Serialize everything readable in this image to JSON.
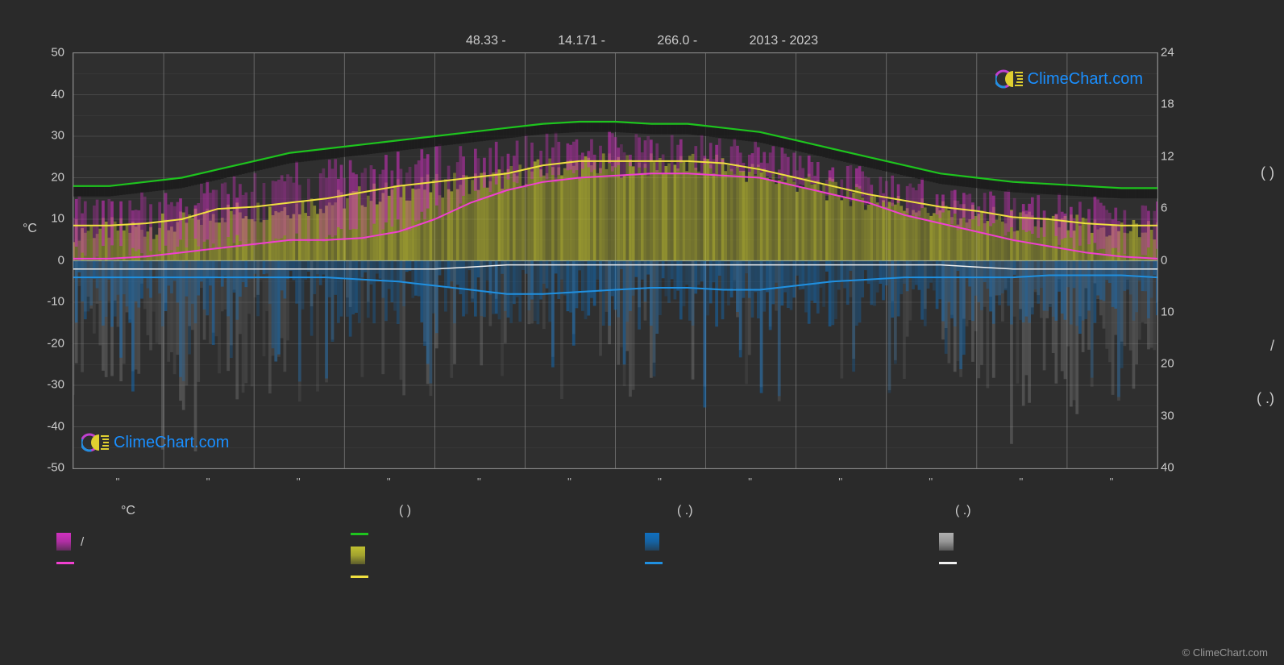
{
  "header": {
    "lat": "48.33 -",
    "lon": "14.171 -",
    "elev": "266.0 -",
    "years": "2013 - 2023"
  },
  "left_axis": {
    "label": "°C",
    "ticks": [
      50,
      40,
      30,
      20,
      10,
      0,
      -10,
      -20,
      -30,
      -40,
      -50
    ],
    "min": -50,
    "max": 50
  },
  "right_axis": {
    "label_top": "24",
    "ticks_top": [
      24,
      18,
      12,
      6,
      0
    ],
    "ticks_bottom": [
      10,
      20,
      30,
      40
    ],
    "min_top": 0,
    "max_top": 24,
    "group1": "(        )",
    "group2": "/",
    "group3": "(   .)"
  },
  "x_axis": {
    "months": 12,
    "tick_label": "''"
  },
  "colors": {
    "bg": "#2a2a2a",
    "plot_bg": "#2f2f2f",
    "grid": "#808080",
    "grid_minor": "#5a5a5a",
    "green_line": "#1ec41e",
    "yellow_line": "#f0e040",
    "magenta_line": "#f040d0",
    "magenta_bar": "#d030c0",
    "yellow_bar": "#c0c030",
    "blue_line": "#2090e0",
    "blue_bar": "#1070c0",
    "white_line": "#f0f0f0",
    "gray_bar": "#b0b0b0",
    "text": "#cccccc"
  },
  "lines": {
    "green": [
      18,
      18,
      19,
      20,
      22,
      24,
      26,
      27,
      28,
      29,
      30,
      31,
      32,
      33,
      33.5,
      33.5,
      33,
      33,
      32,
      31,
      29,
      27,
      25,
      23,
      21,
      20,
      19,
      18.5,
      18,
      17.5,
      17.5
    ],
    "yellow": [
      8.5,
      8.5,
      9,
      10,
      12.5,
      13,
      14,
      15,
      16.5,
      18,
      19,
      20,
      21,
      23,
      24,
      24,
      24,
      24,
      23.5,
      22,
      20,
      18,
      16,
      14.5,
      13,
      12,
      10.5,
      10,
      9,
      8.5,
      8.5
    ],
    "magenta": [
      0.5,
      0.5,
      1,
      2,
      3,
      4,
      5,
      5,
      5.5,
      7,
      10,
      14,
      17,
      19,
      20,
      20.5,
      21,
      21,
      20.5,
      20,
      18,
      16,
      14,
      11,
      9,
      7,
      5,
      3.5,
      2,
      1,
      0.5
    ],
    "blue": [
      -4,
      -4,
      -4,
      -4,
      -4,
      -4,
      -4,
      -4,
      -4.5,
      -5,
      -6,
      -7,
      -8,
      -8,
      -7.5,
      -7,
      -6.5,
      -6.5,
      -7,
      -7,
      -6,
      -5,
      -4.5,
      -4,
      -4,
      -4,
      -4,
      -3.5,
      -3.5,
      -3.5,
      -4
    ],
    "white": [
      -2,
      -2,
      -2,
      -2,
      -2,
      -2,
      -2,
      -2,
      -2,
      -2,
      -2,
      -1.5,
      -1,
      -1,
      -1,
      -1,
      -1,
      -1,
      -1,
      -1,
      -1,
      -1,
      -1,
      -1,
      -1,
      -1.5,
      -2,
      -2,
      -2,
      -2,
      -2
    ]
  },
  "legend": {
    "header1": "°C",
    "header2": "(           )",
    "header3": "(   .)",
    "header4": "(   .)",
    "col1": [
      {
        "type": "bar",
        "color": "#d030c0",
        "label": "/"
      },
      {
        "type": "line",
        "color": "#f040d0",
        "label": ""
      }
    ],
    "col2": [
      {
        "type": "line",
        "color": "#1ec41e",
        "label": ""
      },
      {
        "type": "bar",
        "color": "#c0c030",
        "label": ""
      },
      {
        "type": "line",
        "color": "#f0e040",
        "label": ""
      }
    ],
    "col3": [
      {
        "type": "bar",
        "color": "#1070c0",
        "label": ""
      },
      {
        "type": "line",
        "color": "#2090e0",
        "label": ""
      }
    ],
    "col4": [
      {
        "type": "bar",
        "color": "#b0b0b0",
        "label": ""
      },
      {
        "type": "line",
        "color": "#f0f0f0",
        "label": ""
      }
    ]
  },
  "brand": "ClimeChart.com",
  "copyright": "© ClimeChart.com"
}
